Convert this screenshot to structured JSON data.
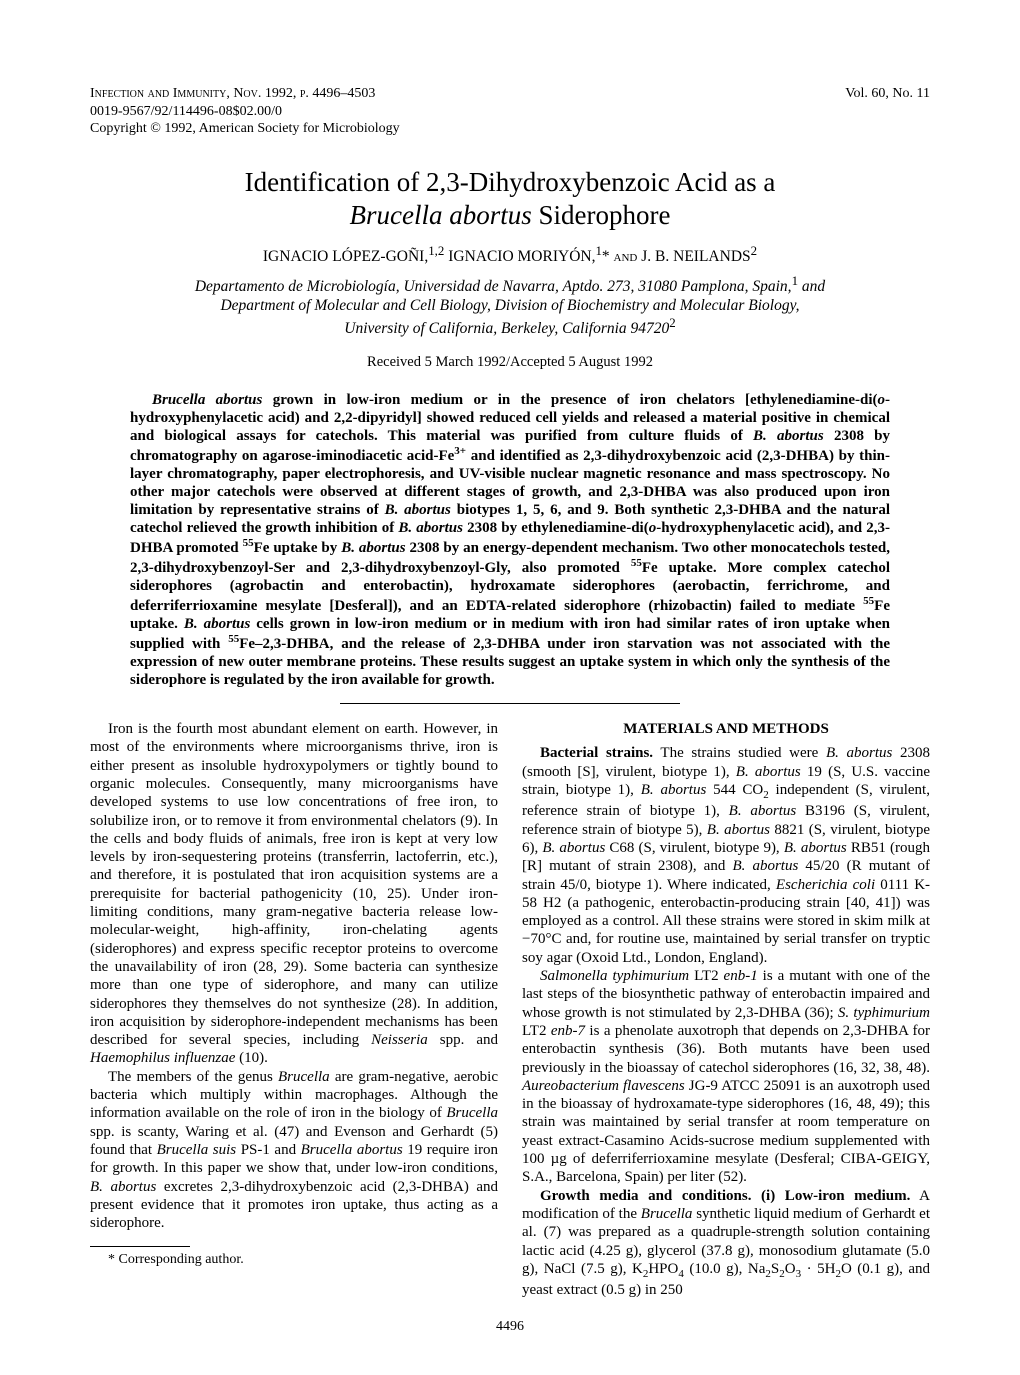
{
  "header": {
    "journal_line": "Infection and Immunity, Nov. 1992, p. 4496–4503",
    "issn_line": "0019-9567/92/114496-08$02.00/0",
    "copyright_line": "Copyright © 1992, American Society for Microbiology",
    "volume_issue": "Vol. 60, No. 11"
  },
  "title": {
    "line1": "Identification of 2,3-Dihydroxybenzoic Acid as a",
    "line2_pre": "Brucella abortus",
    "line2_post": " Siderophore"
  },
  "authors_html": "IGNACIO LÓPEZ-GOÑI,<sup>1,2</sup> IGNACIO MORIYÓN,<sup>1</sup>* <span class='small-caps'>and</span> J. B. NEILANDS<sup>2</sup>",
  "affiliations_html": "Departamento de Microbiología, Universidad de Navarra, Aptdo. 273, 31080 Pamplona, Spain,<sup class='normal-inline'>1</sup> and<br>Department of Molecular and Cell Biology, Division of Biochemistry and Molecular Biology,<br>University of California, Berkeley, California 94720<sup class='normal-inline'>2</sup>",
  "received": "Received 5 March 1992/Accepted 5 August 1992",
  "abstract_html": "<span class='italic'>Brucella abortus</span> grown in low-iron medium or in the presence of iron chelators [ethylenediamine-di(<span class='italic'>o</span>-hydroxyphenylacetic acid) and 2,2-dipyridyl] showed reduced cell yields and released a material positive in chemical and biological assays for catechols. This material was purified from culture fluids of <span class='italic'>B. abortus</span> 2308 by chromatography on agarose-iminodiacetic acid-Fe<sup>3+</sup> and identified as 2,3-dihydroxybenzoic acid (2,3-DHBA) by thin-layer chromatography, paper electrophoresis, and UV-visible nuclear magnetic resonance and mass spectroscopy. No other major catechols were observed at different stages of growth, and 2,3-DHBA was also produced upon iron limitation by representative strains of <span class='italic'>B. abortus</span> biotypes 1, 5, 6, and 9. Both synthetic 2,3-DHBA and the natural catechol relieved the growth inhibition of <span class='italic'>B. abortus</span> 2308 by ethylenediamine-di(<span class='italic'>o</span>-hydroxyphenylacetic acid), and 2,3-DHBA promoted <sup>55</sup>Fe uptake by <span class='italic'>B. abortus</span> 2308 by an energy-dependent mechanism. Two other monocatechols tested, 2,3-dihydroxybenzoyl-Ser and 2,3-dihydroxybenzoyl-Gly, also promoted <sup>55</sup>Fe uptake. More complex catechol siderophores (agrobactin and enterobactin), hydroxamate siderophores (aerobactin, ferrichrome, and deferriferrioxamine mesylate [Desferal]), and an EDTA-related siderophore (rhizobactin) failed to mediate <sup>55</sup>Fe uptake. <span class='italic'>B. abortus</span> cells grown in low-iron medium or in medium with iron had similar rates of iron uptake when supplied with <sup>55</sup>Fe–2,3-DHBA, and the release of 2,3-DHBA under iron starvation was not associated with the expression of new outer membrane proteins. These results suggest an uptake system in which only the synthesis of the siderophore is regulated by the iron available for growth.",
  "body": {
    "left_p1_html": "Iron is the fourth most abundant element on earth. However, in most of the environments where microorganisms thrive, iron is either present as insoluble hydroxypolymers or tightly bound to organic molecules. Consequently, many microorganisms have developed systems to use low concentrations of free iron, to solubilize iron, or to remove it from environmental chelators (9). In the cells and body fluids of animals, free iron is kept at very low levels by iron-sequestering proteins (transferrin, lactoferrin, etc.), and therefore, it is postulated that iron acquisition systems are a prerequisite for bacterial pathogenicity (10, 25). Under iron-limiting conditions, many gram-negative bacteria release low-molecular-weight, high-affinity, iron-chelating agents (siderophores) and express specific receptor proteins to overcome the unavailability of iron (28, 29). Some bacteria can synthesize more than one type of siderophore, and many can utilize siderophores they themselves do not synthesize (28). In addition, iron acquisition by siderophore-independent mechanisms has been described for several species, including <span class='italic'>Neisseria</span> spp. and <span class='italic'>Haemophilus influenzae</span> (10).",
    "left_p2_html": "The members of the genus <span class='italic'>Brucella</span> are gram-negative, aerobic bacteria which multiply within macrophages. Although the information available on the role of iron in the biology of <span class='italic'>Brucella</span> spp. is scanty, Waring et al. (47) and Evenson and Gerhardt (5) found that <span class='italic'>Brucella suis</span> PS-1 and <span class='italic'>Brucella abortus</span> 19 require iron for growth. In this paper we show that, under low-iron conditions, <span class='italic'>B. abortus</span> excretes 2,3-dihydroxybenzoic acid (2,3-DHBA) and present evidence that it promotes iron uptake, thus acting as a siderophore.",
    "right_heading": "MATERIALS AND METHODS",
    "right_p1_html": "<b>Bacterial strains.</b> The strains studied were <span class='italic'>B. abortus</span> 2308 (smooth [S], virulent, biotype 1), <span class='italic'>B. abortus</span> 19 (S, U.S. vaccine strain, biotype 1), <span class='italic'>B. abortus</span> 544 CO<sub>2</sub> independent (S, virulent, reference strain of biotype 1), <span class='italic'>B. abortus</span> B3196 (S, virulent, reference strain of biotype 5), <span class='italic'>B. abortus</span> 8821 (S, virulent, biotype 6), <span class='italic'>B. abortus</span> C68 (S, virulent, biotype 9), <span class='italic'>B. abortus</span> RB51 (rough [R] mutant of strain 2308), and <span class='italic'>B. abortus</span> 45/20 (R mutant of strain 45/0, biotype 1). Where indicated, <span class='italic'>Escherichia coli</span> 0111 K-58 H2 (a pathogenic, enterobactin-producing strain [40, 41]) was employed as a control. All these strains were stored in skim milk at −70°C and, for routine use, maintained by serial transfer on tryptic soy agar (Oxoid Ltd., London, England).",
    "right_p2_html": "<span class='italic'>Salmonella typhimurium</span> LT2 <span class='italic'>enb-1</span> is a mutant with one of the last steps of the biosynthetic pathway of enterobactin impaired and whose growth is not stimulated by 2,3-DHBA (36); <span class='italic'>S. typhimurium</span> LT2 <span class='italic'>enb-7</span> is a phenolate auxotroph that depends on 2,3-DHBA for enterobactin synthesis (36). Both mutants have been used previously in the bioassay of catechol siderophores (16, 32, 38, 48). <span class='italic'>Aureobacterium flavescens</span> JG-9 ATCC 25091 is an auxotroph used in the bioassay of hydroxamate-type siderophores (16, 48, 49); this strain was maintained by serial transfer at room temperature on yeast extract-Casamino Acids-sucrose medium supplemented with 100 µg of deferriferrioxamine mesylate (Desferal; CIBA-GEIGY, S.A., Barcelona, Spain) per liter (52).",
    "right_p3_html": "<b>Growth media and conditions. (i) Low-iron medium.</b> A modification of the <span class='italic'>Brucella</span> synthetic liquid medium of Gerhardt et al. (7) was prepared as a quadruple-strength solution containing lactic acid (4.25 g), glycerol (37.8 g), monosodium glutamate (5.0 g), NaCl (7.5 g), K<sub>2</sub>HPO<sub>4</sub> (10.0 g), Na<sub>2</sub>S<sub>2</sub>O<sub>3</sub> · 5H<sub>2</sub>O (0.1 g), and yeast extract (0.5 g) in 250"
  },
  "footnote": "* Corresponding author.",
  "footer_page": "4496"
}
